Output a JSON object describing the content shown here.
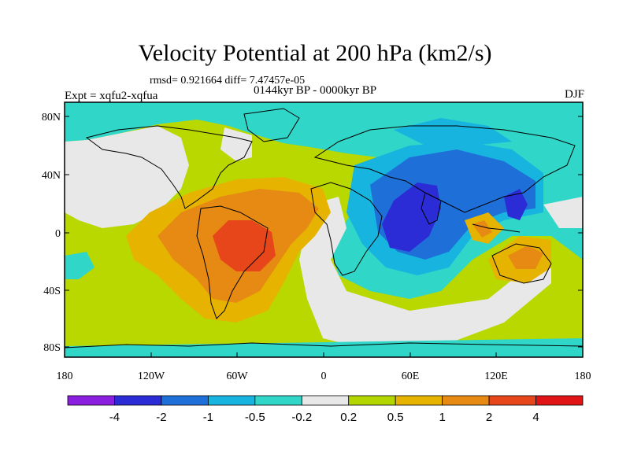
{
  "header": {
    "title": "Velocity Potential at 200 hPa (km2/s)",
    "stats": "rmsd= 0.921664 diff= 7.47457e-05",
    "experiment": "Expt = xqfu2-xqfua",
    "period": "0144kyr BP - 0000kyr BP",
    "season": "DJF"
  },
  "axes": {
    "lat_labels": [
      "80N",
      "40N",
      "0",
      "40S",
      "80S"
    ],
    "lon_labels": [
      "180",
      "120W",
      "60W",
      "0",
      "60E",
      "120E",
      "180"
    ]
  },
  "colorbar": {
    "labels": [
      "-4",
      "-2",
      "-1",
      "-0.5",
      "-0.2",
      "0.2",
      "0.5",
      "1",
      "2",
      "4"
    ],
    "colors": [
      "#8a1fe0",
      "#2c2cd6",
      "#1f6fd9",
      "#17b4e0",
      "#30d6c8",
      "#e8e8e8",
      "#b4d600",
      "#e6b400",
      "#e68a14",
      "#e6461a",
      "#e01414"
    ]
  },
  "colors": {
    "ocean_default": "#b8d800",
    "land_outline": "#000000"
  }
}
